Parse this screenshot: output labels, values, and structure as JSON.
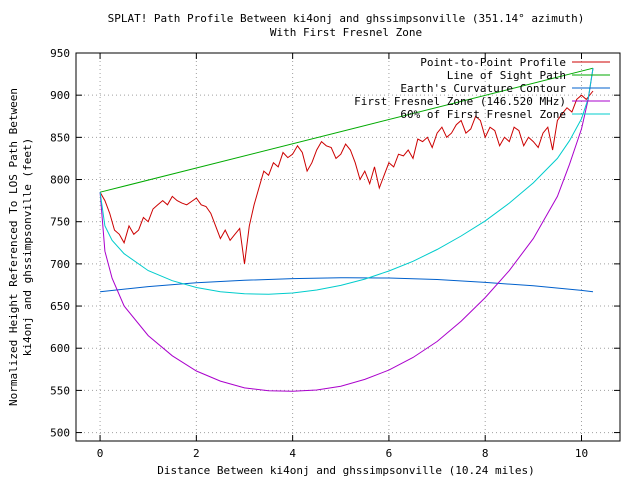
{
  "chart_data": {
    "type": "line",
    "title": "SPLAT! Path Profile Between ki4onj and ghssimpsonville (351.14° azimuth)",
    "subtitle": "With First Fresnel Zone",
    "xlabel": "Distance Between ki4onj and ghssimpsonville (10.24 miles)",
    "ylabel_line1": "Normalized Height Referenced To LOS Path Between",
    "ylabel_line2": "ki4onj and ghssimpsonville (feet)",
    "xlim": [
      -0.5,
      10.8
    ],
    "ylim": [
      490,
      950
    ],
    "xticks": [
      0,
      2,
      4,
      6,
      8,
      10
    ],
    "yticks": [
      500,
      550,
      600,
      650,
      700,
      750,
      800,
      850,
      900,
      950
    ],
    "grid": true,
    "legend_position": "top-right",
    "series": [
      {
        "name": "Point-to-Point Profile",
        "color": "#cc0000",
        "x": [
          0.0,
          0.1,
          0.2,
          0.3,
          0.4,
          0.5,
          0.6,
          0.7,
          0.8,
          0.9,
          1.0,
          1.1,
          1.2,
          1.3,
          1.4,
          1.5,
          1.6,
          1.7,
          1.8,
          1.9,
          2.0,
          2.1,
          2.2,
          2.3,
          2.4,
          2.5,
          2.6,
          2.7,
          2.8,
          2.9,
          3.0,
          3.1,
          3.2,
          3.3,
          3.4,
          3.5,
          3.6,
          3.7,
          3.8,
          3.9,
          4.0,
          4.1,
          4.2,
          4.3,
          4.4,
          4.5,
          4.6,
          4.7,
          4.8,
          4.9,
          5.0,
          5.1,
          5.2,
          5.3,
          5.4,
          5.5,
          5.6,
          5.7,
          5.8,
          5.9,
          6.0,
          6.1,
          6.2,
          6.3,
          6.4,
          6.5,
          6.6,
          6.7,
          6.8,
          6.9,
          7.0,
          7.1,
          7.2,
          7.3,
          7.4,
          7.5,
          7.6,
          7.7,
          7.8,
          7.9,
          8.0,
          8.1,
          8.2,
          8.3,
          8.4,
          8.5,
          8.6,
          8.7,
          8.8,
          8.9,
          9.0,
          9.1,
          9.2,
          9.3,
          9.4,
          9.5,
          9.6,
          9.7,
          9.8,
          9.9,
          10.0,
          10.1,
          10.24
        ],
        "y": [
          785,
          775,
          760,
          740,
          735,
          725,
          745,
          735,
          740,
          755,
          750,
          765,
          770,
          775,
          770,
          780,
          775,
          772,
          770,
          774,
          778,
          770,
          768,
          760,
          745,
          730,
          740,
          728,
          735,
          742,
          700,
          745,
          770,
          790,
          810,
          805,
          820,
          815,
          832,
          826,
          830,
          840,
          832,
          810,
          820,
          835,
          845,
          840,
          838,
          825,
          830,
          842,
          835,
          820,
          800,
          810,
          795,
          815,
          790,
          805,
          820,
          815,
          830,
          828,
          835,
          825,
          848,
          845,
          850,
          838,
          855,
          862,
          850,
          855,
          865,
          870,
          855,
          860,
          875,
          870,
          850,
          862,
          858,
          840,
          850,
          845,
          862,
          858,
          840,
          850,
          845,
          838,
          855,
          862,
          835,
          870,
          878,
          885,
          880,
          895,
          900,
          895,
          905
        ]
      },
      {
        "name": "Line of Sight Path",
        "color": "#00aa00",
        "x": [
          0,
          10.24
        ],
        "y": [
          785,
          932
        ]
      },
      {
        "name": "Earth's Curvature Contour",
        "color": "#0060cc",
        "x": [
          0,
          1,
          2,
          3,
          4,
          5,
          5.12,
          6,
          7,
          8,
          9,
          10,
          10.24
        ],
        "y": [
          667,
          673,
          677.5,
          680.5,
          682.5,
          683.5,
          683.6,
          683.3,
          681.5,
          678,
          674,
          668.5,
          667
        ]
      },
      {
        "name": "First Fresnel Zone (146.520 MHz)",
        "color": "#aa00cc",
        "x": [
          0,
          0.1,
          0.25,
          0.5,
          1,
          1.5,
          2,
          2.5,
          3,
          3.5,
          4,
          4.5,
          5,
          5.5,
          6,
          6.5,
          7,
          7.5,
          8,
          8.5,
          9,
          9.5,
          9.75,
          10,
          10.14,
          10.24
        ],
        "y": [
          785,
          715,
          683,
          650,
          615,
          591,
          573,
          561,
          553,
          549.5,
          549,
          550.5,
          555,
          563,
          574,
          589,
          608,
          632,
          660,
          692,
          730,
          780,
          818,
          860,
          895,
          932
        ]
      },
      {
        "name": "60% of First Fresnel Zone",
        "color": "#00cccc",
        "x": [
          0,
          0.1,
          0.25,
          0.5,
          1,
          1.5,
          2,
          2.5,
          3,
          3.5,
          4,
          4.5,
          5,
          5.5,
          6,
          6.5,
          7,
          7.5,
          8,
          8.5,
          9,
          9.5,
          9.75,
          10,
          10.14,
          10.24
        ],
        "y": [
          785,
          745,
          728,
          712,
          692,
          680,
          672,
          667,
          664.5,
          664,
          665.5,
          669,
          674.5,
          682,
          691.5,
          703,
          717,
          733,
          751,
          772,
          796,
          825,
          846,
          872,
          896,
          932
        ]
      }
    ]
  }
}
